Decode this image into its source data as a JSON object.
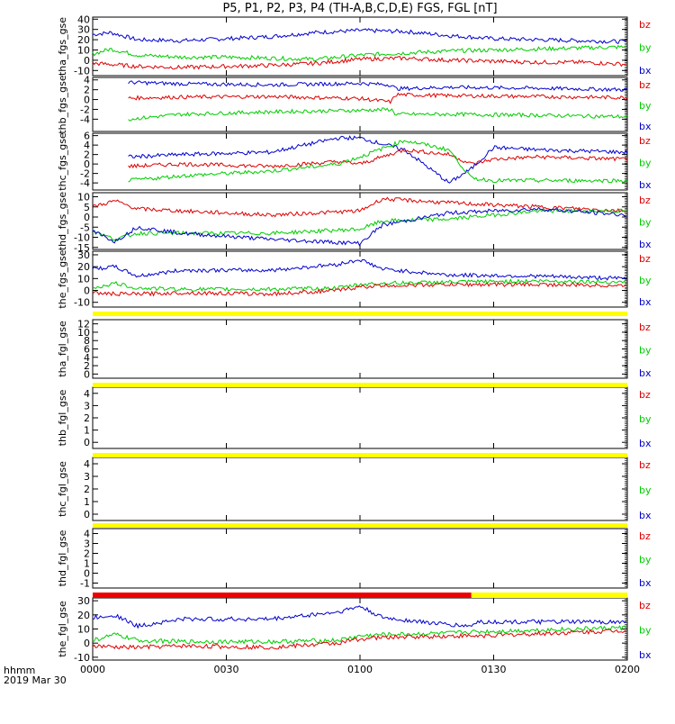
{
  "title": "P5, P1, P2, P3, P4 (TH-A,B,C,D,E) FGS, FGL [nT]",
  "colors": {
    "bz": "#dd0000",
    "by": "#00cc00",
    "bx": "#0000cc",
    "flag_yellow": "#ffff00",
    "flag_red": "#ee0000",
    "axis": "#000000"
  },
  "legend_labels": [
    "bz",
    "by",
    "bx"
  ],
  "x_axis": {
    "label_line1": "hhmm",
    "label_line2": "2019 Mar 30",
    "ticks": [
      "0000",
      "0030",
      "0100",
      "0130",
      "0200"
    ]
  },
  "chart_data": [
    {
      "type": "line",
      "ylabel": "tha_fgs_gse",
      "ylim": [
        -15,
        42
      ],
      "yticks": [
        "40",
        "30",
        "20",
        "10",
        "0",
        "-10"
      ],
      "x_minutes_range": [
        0,
        120
      ],
      "series": [
        {
          "name": "bx",
          "x": [
            0,
            4,
            10,
            20,
            30,
            40,
            50,
            60,
            70,
            80,
            90,
            100,
            110,
            120
          ],
          "y": [
            25,
            27,
            20,
            19,
            21,
            23,
            27,
            29,
            28,
            24,
            21,
            20,
            19,
            18
          ]
        },
        {
          "name": "by",
          "x": [
            0,
            4,
            10,
            20,
            30,
            40,
            50,
            60,
            70,
            80,
            90,
            100,
            110,
            120
          ],
          "y": [
            6,
            11,
            5,
            3,
            3,
            2,
            1,
            5,
            7,
            9,
            10,
            11,
            12,
            13
          ]
        },
        {
          "name": "bz",
          "x": [
            0,
            4,
            10,
            20,
            30,
            40,
            50,
            60,
            70,
            80,
            90,
            100,
            110,
            120
          ],
          "y": [
            -3,
            -4,
            -6,
            -7,
            -6,
            -5,
            -3,
            1,
            2,
            0,
            -1,
            -2,
            -2,
            -4
          ]
        }
      ]
    },
    {
      "type": "line",
      "ylabel": "thb_fgs_gse",
      "ylim": [
        -6.5,
        4.5
      ],
      "yticks": [
        "4",
        "2",
        "0",
        "-2",
        "-4"
      ],
      "x_minutes_range": [
        8,
        120
      ],
      "series": [
        {
          "name": "bx",
          "x": [
            8,
            20,
            40,
            60,
            67,
            68,
            80,
            100,
            120
          ],
          "y": [
            3.5,
            3.2,
            3.0,
            3.3,
            3.0,
            2.2,
            2.5,
            2.3,
            2.0
          ]
        },
        {
          "name": "bz",
          "x": [
            8,
            20,
            40,
            60,
            67,
            68,
            80,
            100,
            120
          ],
          "y": [
            0.3,
            0.5,
            0.6,
            0.2,
            -0.5,
            1.0,
            0.8,
            0.6,
            0.4
          ]
        },
        {
          "name": "by",
          "x": [
            8,
            20,
            40,
            60,
            67,
            68,
            80,
            100,
            120
          ],
          "y": [
            -4.0,
            -3.0,
            -2.5,
            -2.2,
            -2.0,
            -3.0,
            -3.0,
            -3.2,
            -3.5
          ]
        }
      ]
    },
    {
      "type": "line",
      "ylabel": "thc_fgs_gse",
      "ylim": [
        -5.5,
        6.5
      ],
      "yticks": [
        "6",
        "4",
        "2",
        "0",
        "-2",
        "-4"
      ],
      "x_minutes_range": [
        8,
        120
      ],
      "series": [
        {
          "name": "bx",
          "x": [
            8,
            20,
            40,
            55,
            60,
            70,
            80,
            85,
            90,
            100,
            120
          ],
          "y": [
            1.5,
            2.0,
            2.5,
            5.5,
            5.5,
            3.0,
            -4.0,
            -1.0,
            3.5,
            3.0,
            2.5
          ]
        },
        {
          "name": "bz",
          "x": [
            8,
            20,
            40,
            55,
            60,
            70,
            80,
            85,
            90,
            100,
            120
          ],
          "y": [
            -0.5,
            0.0,
            -0.5,
            0.5,
            0.0,
            3.0,
            2.0,
            0.0,
            1.0,
            1.5,
            1.0
          ]
        },
        {
          "name": "by",
          "x": [
            8,
            20,
            40,
            55,
            60,
            70,
            80,
            85,
            90,
            100,
            120
          ],
          "y": [
            -3.5,
            -2.5,
            -1.5,
            0.0,
            1.5,
            5.0,
            3.0,
            -3.0,
            -3.5,
            -3.5,
            -3.5
          ]
        }
      ]
    },
    {
      "type": "line",
      "ylabel": "thd_fgs_gse",
      "ylim": [
        -16,
        12
      ],
      "yticks": [
        "10",
        "5",
        "0",
        "-5",
        "-10",
        "-15"
      ],
      "x_minutes_range": [
        0,
        120
      ],
      "series": [
        {
          "name": "bz",
          "x": [
            0,
            5,
            10,
            20,
            40,
            60,
            65,
            80,
            100,
            120
          ],
          "y": [
            5,
            8,
            4,
            3,
            1,
            3,
            9,
            7,
            5,
            3
          ]
        },
        {
          "name": "by",
          "x": [
            0,
            5,
            10,
            20,
            40,
            60,
            65,
            80,
            100,
            120
          ],
          "y": [
            -7,
            -11,
            -8,
            -8,
            -8,
            -6,
            -2,
            -1,
            3,
            3
          ]
        },
        {
          "name": "bx",
          "x": [
            0,
            5,
            10,
            20,
            40,
            60,
            65,
            80,
            100,
            120
          ],
          "y": [
            -7,
            -12,
            -5,
            -8,
            -11,
            -13,
            -4,
            2,
            4,
            1
          ]
        }
      ]
    },
    {
      "type": "line",
      "ylabel": "the_fgs_gse",
      "ylim": [
        -14,
        33
      ],
      "yticks": [
        "30",
        "20",
        "10",
        "0",
        "-10"
      ],
      "x_minutes_range": [
        0,
        120
      ],
      "series": [
        {
          "name": "bx",
          "x": [
            0,
            5,
            10,
            20,
            40,
            55,
            60,
            65,
            80,
            100,
            120
          ],
          "y": [
            18,
            20,
            12,
            17,
            17,
            22,
            26,
            18,
            13,
            12,
            10
          ]
        },
        {
          "name": "by",
          "x": [
            0,
            5,
            10,
            20,
            40,
            55,
            60,
            65,
            80,
            100,
            120
          ],
          "y": [
            2,
            6,
            2,
            1,
            1,
            2,
            5,
            6,
            7,
            8,
            7
          ]
        },
        {
          "name": "bz",
          "x": [
            0,
            5,
            10,
            20,
            40,
            55,
            60,
            65,
            80,
            100,
            120
          ],
          "y": [
            -2,
            -3,
            -3,
            -2,
            -3,
            0,
            3,
            4,
            5,
            5,
            4
          ]
        }
      ]
    },
    {
      "type": "line",
      "ylabel": "tha_fgl_gse",
      "ylim": [
        -1,
        13
      ],
      "yticks": [
        "12",
        "10",
        "8",
        "6",
        "4",
        "2",
        "0"
      ],
      "x_minutes_range": [
        0,
        120
      ],
      "series": []
    },
    {
      "type": "line",
      "ylabel": "thb_fgl_gse",
      "ylim": [
        -0.5,
        4.5
      ],
      "yticks": [
        "4",
        "3",
        "2",
        "1",
        "0"
      ],
      "x_minutes_range": [
        0,
        120
      ],
      "series": []
    },
    {
      "type": "line",
      "ylabel": "thc_fgl_gse",
      "ylim": [
        -0.5,
        4.5
      ],
      "yticks": [
        "4",
        "3",
        "2",
        "1",
        "0"
      ],
      "x_minutes_range": [
        0,
        120
      ],
      "series": []
    },
    {
      "type": "line",
      "ylabel": "thd_fgl_gse",
      "ylim": [
        -1.5,
        4.5
      ],
      "yticks": [
        "4",
        "3",
        "2",
        "1",
        "0",
        "-1"
      ],
      "x_minutes_range": [
        0,
        120
      ],
      "series": []
    },
    {
      "type": "line",
      "ylabel": "the_fgl_gse",
      "ylim": [
        -12,
        32
      ],
      "yticks": [
        "30",
        "20",
        "10",
        "0",
        "-10"
      ],
      "x_minutes_range": [
        0,
        120
      ],
      "series": [
        {
          "name": "bx",
          "x": [
            0,
            5,
            10,
            20,
            40,
            55,
            60,
            65,
            80,
            85,
            86,
            120
          ],
          "y": [
            18,
            20,
            12,
            17,
            17,
            22,
            26,
            18,
            13,
            12,
            15,
            15
          ]
        },
        {
          "name": "by",
          "x": [
            0,
            5,
            10,
            20,
            40,
            55,
            60,
            65,
            80,
            85,
            86,
            120
          ],
          "y": [
            2,
            6,
            2,
            1,
            1,
            2,
            5,
            6,
            7,
            8,
            8,
            11
          ]
        },
        {
          "name": "bz",
          "x": [
            0,
            5,
            10,
            20,
            40,
            55,
            60,
            65,
            80,
            85,
            86,
            120
          ],
          "y": [
            -2,
            -3,
            -3,
            -2,
            -3,
            0,
            3,
            4,
            5,
            5,
            5,
            9
          ]
        }
      ]
    }
  ]
}
